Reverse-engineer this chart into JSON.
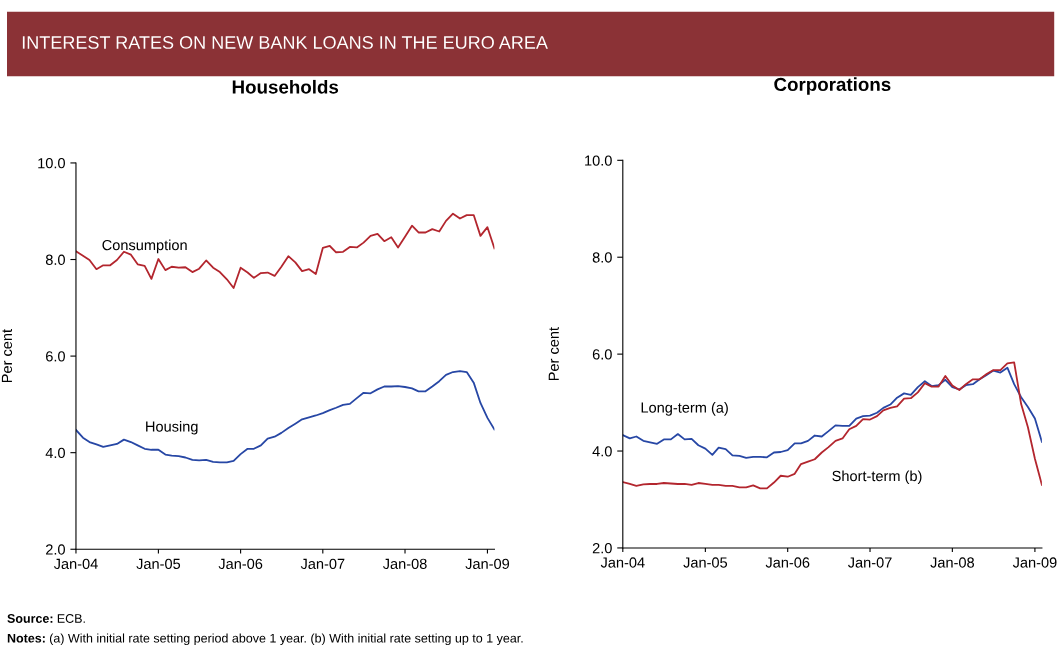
{
  "chart_data": [
    {
      "type": "line",
      "title": "Households",
      "ylabel": "Per cent",
      "annotations": [
        "INTEREST RATES ON NEW BANK LOANS IN THE EURO AREA",
        "Source: ECB.",
        "Notes: (a) With initial rate setting period above 1 year. (b) With initial rate setting up to 1 year."
      ],
      "x": [
        "2004-01",
        "2004-02",
        "2004-03",
        "2004-04",
        "2004-05",
        "2004-06",
        "2004-07",
        "2004-08",
        "2004-09",
        "2004-10",
        "2004-11",
        "2004-12",
        "2005-01",
        "2005-02",
        "2005-03",
        "2005-04",
        "2005-05",
        "2005-06",
        "2005-07",
        "2005-08",
        "2005-09",
        "2005-10",
        "2005-11",
        "2005-12",
        "2006-01",
        "2006-02",
        "2006-03",
        "2006-04",
        "2006-05",
        "2006-06",
        "2006-07",
        "2006-08",
        "2006-09",
        "2006-10",
        "2006-11",
        "2006-12",
        "2007-01",
        "2007-02",
        "2007-03",
        "2007-04",
        "2007-05",
        "2007-06",
        "2007-07",
        "2007-08",
        "2007-09",
        "2007-10",
        "2007-11",
        "2007-12",
        "2008-01",
        "2008-02",
        "2008-03",
        "2008-04",
        "2008-05",
        "2008-06",
        "2008-07",
        "2008-08",
        "2008-09",
        "2008-10",
        "2008-11",
        "2008-12",
        "2009-01",
        "2009-02"
      ],
      "series": [
        {
          "name": "Consumption",
          "color": "#b3262e",
          "values": [
            8.17,
            8.08,
            7.99,
            7.8,
            7.88,
            7.88,
            7.99,
            8.16,
            8.1,
            7.9,
            7.87,
            7.6,
            8.01,
            7.78,
            7.85,
            7.83,
            7.84,
            7.74,
            7.81,
            7.98,
            7.83,
            7.74,
            7.59,
            7.41,
            7.83,
            7.73,
            7.62,
            7.72,
            7.73,
            7.66,
            7.85,
            8.07,
            7.94,
            7.76,
            7.8,
            7.7,
            8.24,
            8.28,
            8.15,
            8.16,
            8.26,
            8.25,
            8.35,
            8.49,
            8.53,
            8.38,
            8.46,
            8.25,
            8.47,
            8.7,
            8.56,
            8.56,
            8.63,
            8.58,
            8.8,
            8.95,
            8.85,
            8.92,
            8.92,
            8.49,
            8.67,
            8.23
          ]
        },
        {
          "name": "Housing",
          "color": "#2747a5",
          "values": [
            4.47,
            4.31,
            4.22,
            4.17,
            4.12,
            4.15,
            4.18,
            4.27,
            4.22,
            4.15,
            4.08,
            4.06,
            4.06,
            3.96,
            3.94,
            3.93,
            3.9,
            3.85,
            3.84,
            3.85,
            3.81,
            3.8,
            3.8,
            3.83,
            3.97,
            4.08,
            4.08,
            4.15,
            4.29,
            4.33,
            4.41,
            4.51,
            4.6,
            4.69,
            4.73,
            4.77,
            4.82,
            4.88,
            4.93,
            4.99,
            5.01,
            5.13,
            5.24,
            5.23,
            5.31,
            5.37,
            5.37,
            5.38,
            5.36,
            5.33,
            5.27,
            5.27,
            5.37,
            5.48,
            5.61,
            5.67,
            5.69,
            5.67,
            5.45,
            5.03,
            4.72,
            4.48
          ]
        }
      ],
      "xlim": [
        "2004-01",
        "2009-02"
      ],
      "xticks": [
        {
          "value": "2004-01",
          "label": "Jan-04"
        },
        {
          "value": "2005-01",
          "label": "Jan-05"
        },
        {
          "value": "2006-01",
          "label": "Jan-06"
        },
        {
          "value": "2007-01",
          "label": "Jan-07"
        },
        {
          "value": "2008-01",
          "label": "Jan-08"
        },
        {
          "value": "2009-01",
          "label": "Jan-09"
        }
      ],
      "ylim": [
        2,
        10
      ],
      "yticks": [
        {
          "value": 2,
          "label": "2.0"
        },
        {
          "value": 4,
          "label": "4.0"
        },
        {
          "value": 6,
          "label": "6.0"
        },
        {
          "value": 8,
          "label": "8.0"
        },
        {
          "value": 10,
          "label": "10.0"
        }
      ]
    },
    {
      "type": "line",
      "title": "Corporations",
      "ylabel": "Per cent",
      "x": [
        "2004-01",
        "2004-02",
        "2004-03",
        "2004-04",
        "2004-05",
        "2004-06",
        "2004-07",
        "2004-08",
        "2004-09",
        "2004-10",
        "2004-11",
        "2004-12",
        "2005-01",
        "2005-02",
        "2005-03",
        "2005-04",
        "2005-05",
        "2005-06",
        "2005-07",
        "2005-08",
        "2005-09",
        "2005-10",
        "2005-11",
        "2005-12",
        "2006-01",
        "2006-02",
        "2006-03",
        "2006-04",
        "2006-05",
        "2006-06",
        "2006-07",
        "2006-08",
        "2006-09",
        "2006-10",
        "2006-11",
        "2006-12",
        "2007-01",
        "2007-02",
        "2007-03",
        "2007-04",
        "2007-05",
        "2007-06",
        "2007-07",
        "2007-08",
        "2007-09",
        "2007-10",
        "2007-11",
        "2007-12",
        "2008-01",
        "2008-02",
        "2008-03",
        "2008-04",
        "2008-05",
        "2008-06",
        "2008-07",
        "2008-08",
        "2008-09",
        "2008-10",
        "2008-11",
        "2008-12",
        "2009-01",
        "2009-02"
      ],
      "series": [
        {
          "name": "Long-term (a)",
          "color": "#2747a5",
          "values": [
            4.33,
            4.26,
            4.3,
            4.21,
            4.18,
            4.15,
            4.24,
            4.24,
            4.35,
            4.24,
            4.25,
            4.12,
            4.05,
            3.92,
            4.07,
            4.04,
            3.91,
            3.9,
            3.86,
            3.88,
            3.88,
            3.87,
            3.97,
            3.98,
            4.02,
            4.16,
            4.16,
            4.21,
            4.32,
            4.3,
            4.41,
            4.53,
            4.52,
            4.52,
            4.67,
            4.72,
            4.73,
            4.79,
            4.89,
            4.96,
            5.1,
            5.19,
            5.16,
            5.32,
            5.44,
            5.34,
            5.36,
            5.47,
            5.32,
            5.27,
            5.36,
            5.38,
            5.48,
            5.57,
            5.66,
            5.62,
            5.72,
            5.38,
            5.11,
            4.91,
            4.67,
            4.19
          ]
        },
        {
          "name": "Short-term (b)",
          "color": "#b3262e",
          "values": [
            3.36,
            3.32,
            3.28,
            3.31,
            3.32,
            3.32,
            3.34,
            3.33,
            3.32,
            3.32,
            3.3,
            3.34,
            3.32,
            3.3,
            3.3,
            3.28,
            3.28,
            3.25,
            3.25,
            3.29,
            3.23,
            3.23,
            3.35,
            3.49,
            3.47,
            3.53,
            3.73,
            3.78,
            3.83,
            3.97,
            4.08,
            4.21,
            4.26,
            4.45,
            4.52,
            4.66,
            4.65,
            4.72,
            4.84,
            4.89,
            4.92,
            5.08,
            5.09,
            5.21,
            5.4,
            5.33,
            5.33,
            5.55,
            5.35,
            5.26,
            5.38,
            5.48,
            5.48,
            5.59,
            5.67,
            5.67,
            5.81,
            5.83,
            4.97,
            4.49,
            3.84,
            3.3
          ]
        }
      ],
      "xlim": [
        "2004-01",
        "2009-02"
      ],
      "xticks": [
        {
          "value": "2004-01",
          "label": "Jan-04"
        },
        {
          "value": "2005-01",
          "label": "Jan-05"
        },
        {
          "value": "2006-01",
          "label": "Jan-06"
        },
        {
          "value": "2007-01",
          "label": "Jan-07"
        },
        {
          "value": "2008-01",
          "label": "Jan-08"
        },
        {
          "value": "2009-01",
          "label": "Jan-09"
        }
      ],
      "ylim": [
        2,
        10
      ],
      "yticks": [
        {
          "value": 2,
          "label": "2.0"
        },
        {
          "value": 4,
          "label": "4.0"
        },
        {
          "value": 6,
          "label": "6.0"
        },
        {
          "value": 8,
          "label": "8.0"
        },
        {
          "value": 10,
          "label": "10.0"
        }
      ]
    }
  ]
}
